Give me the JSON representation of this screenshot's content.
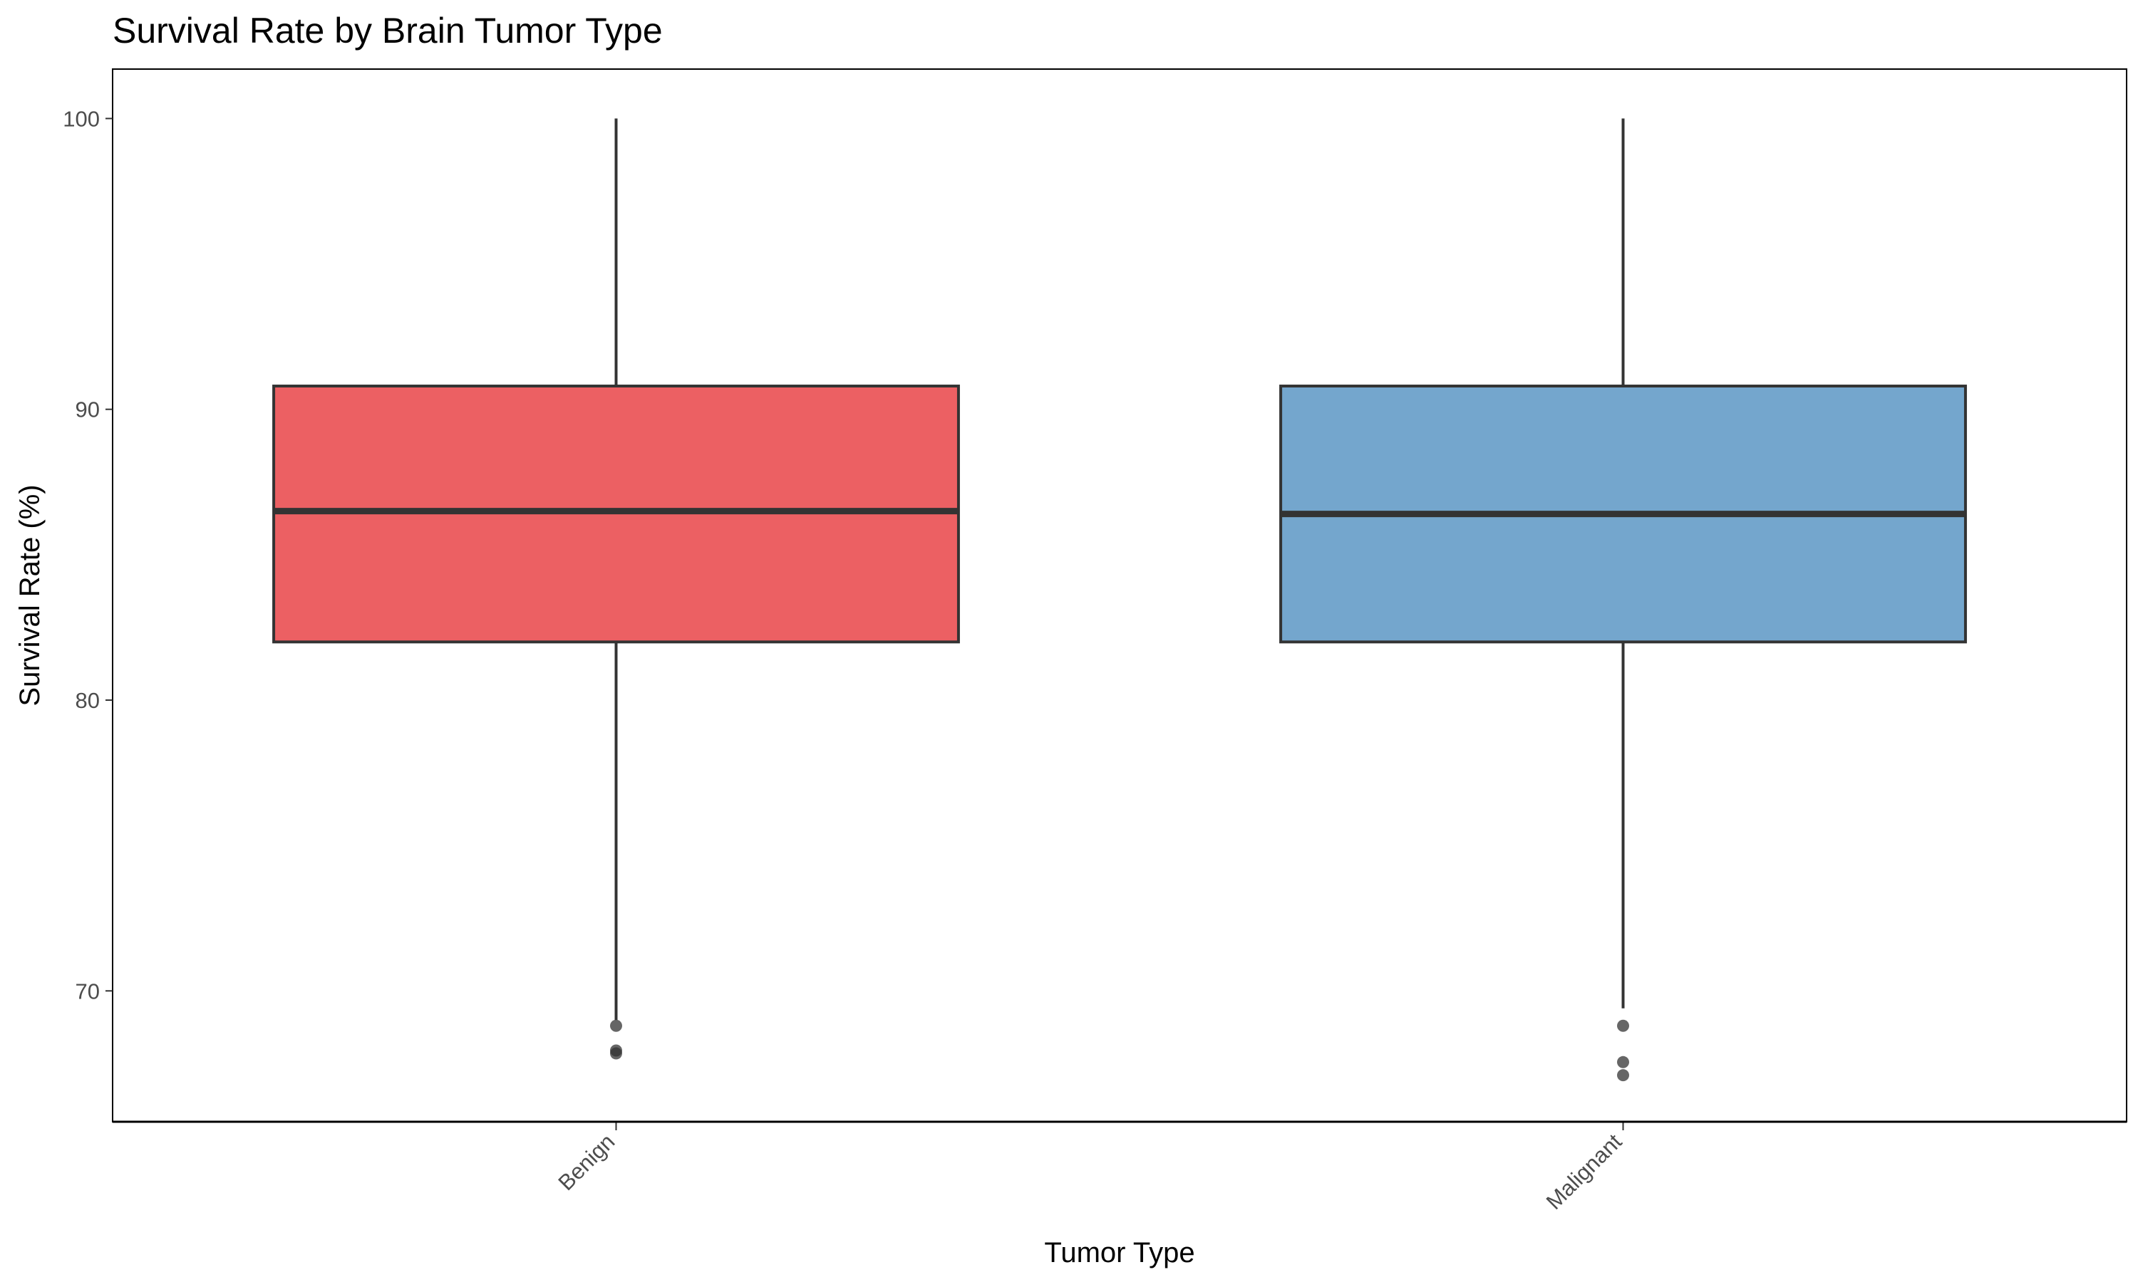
{
  "chart_data": {
    "type": "boxplot",
    "title": "Survival Rate by Brain Tumor Type",
    "xlabel": "Tumor Type",
    "ylabel": "Survival Rate (%)",
    "categories": [
      "Benign",
      "Malignant"
    ],
    "ylim": [
      65.5,
      101.7
    ],
    "yticks": [
      70,
      80,
      90,
      100
    ],
    "grid": false,
    "boxes": [
      {
        "category": "Benign",
        "color": "#ec6063",
        "whisker_low": 69.0,
        "q1": 82.0,
        "median": 86.5,
        "q3": 90.8,
        "whisker_high": 100.0,
        "outliers": [
          68.8,
          67.95,
          67.85
        ]
      },
      {
        "category": "Malignant",
        "color": "#74a6cd",
        "whisker_low": 69.4,
        "q1": 82.0,
        "median": 86.4,
        "q3": 90.8,
        "whisker_high": 100.0,
        "outliers": [
          68.8,
          67.55,
          67.1
        ]
      }
    ]
  }
}
